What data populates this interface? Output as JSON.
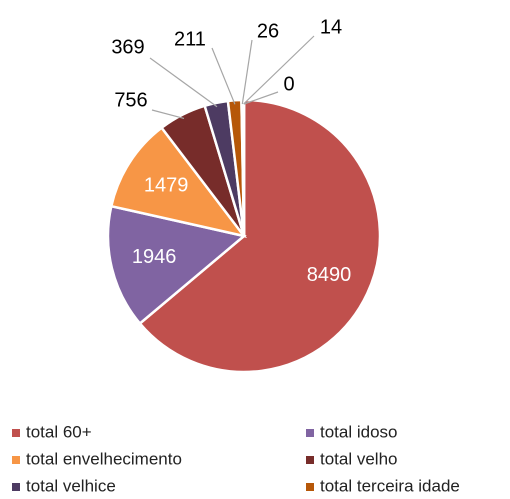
{
  "chart_data": {
    "type": "pie",
    "categories": [
      "total 60+",
      "total idoso",
      "total envelhecimento",
      "total velho",
      "total velhice",
      "total terceira idade",
      null,
      null,
      null
    ],
    "values": [
      8490,
      1946,
      1479,
      756,
      369,
      211,
      26,
      14,
      0
    ],
    "colors": [
      "#c0504d",
      "#8064a2",
      "#f79646",
      "#772c2a",
      "#4d3b62",
      "#b65708",
      "#d99694",
      "#b3a2c7",
      "#fac090"
    ],
    "legend": "bottom"
  }
}
